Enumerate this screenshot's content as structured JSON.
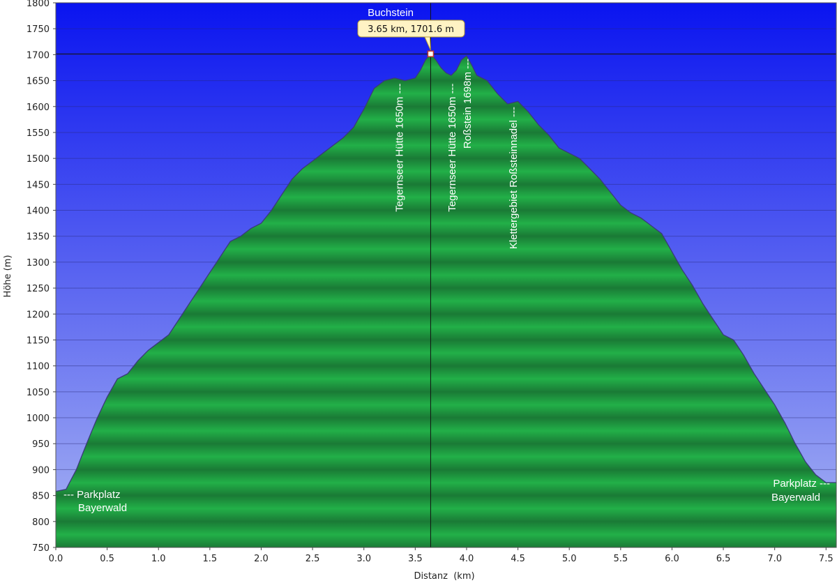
{
  "chart_data": {
    "type": "area",
    "title": "",
    "xlabel": "Distanz  (km)",
    "ylabel": "Höhe (m)",
    "xlim": [
      0,
      7.6
    ],
    "ylim": [
      750,
      1800
    ],
    "x_ticks": [
      "0.0",
      "0.5",
      "1.0",
      "1.5",
      "2.0",
      "2.5",
      "3.0",
      "3.5",
      "4.0",
      "4.5",
      "5.0",
      "5.5",
      "6.0",
      "6.5",
      "7.0",
      "7.5"
    ],
    "y_ticks": [
      "750",
      "800",
      "850",
      "900",
      "950",
      "1000",
      "1050",
      "1100",
      "1150",
      "1200",
      "1250",
      "1300",
      "1350",
      "1400",
      "1450",
      "1500",
      "1550",
      "1600",
      "1650",
      "1700",
      "1750",
      "1800"
    ],
    "grid": true,
    "colors": {
      "sky_top": "#0a14f0",
      "sky_bottom": "#a8b4f2",
      "fill_dark": "#1a7a35",
      "fill_light": "#22b048",
      "outline": "#3a3a7a"
    },
    "series": [
      {
        "x": [
          0,
          0.1,
          0.2,
          0.3,
          0.4,
          0.5,
          0.6,
          0.7,
          0.8,
          0.9,
          1.0,
          1.1,
          1.2,
          1.3,
          1.4,
          1.5,
          1.6,
          1.7,
          1.8,
          1.9,
          2.0,
          2.1,
          2.2,
          2.3,
          2.4,
          2.5,
          2.6,
          2.7,
          2.8,
          2.9,
          3.0,
          3.1,
          3.2,
          3.3,
          3.4,
          3.5,
          3.55,
          3.6,
          3.65,
          3.7,
          3.75,
          3.8,
          3.85,
          3.9,
          3.95,
          4.0,
          4.05,
          4.1,
          4.2,
          4.3,
          4.4,
          4.5,
          4.6,
          4.7,
          4.8,
          4.9,
          5.0,
          5.1,
          5.2,
          5.3,
          5.4,
          5.5,
          5.6,
          5.7,
          5.8,
          5.9,
          6.0,
          6.1,
          6.2,
          6.3,
          6.4,
          6.5,
          6.6,
          6.7,
          6.8,
          6.9,
          7.0,
          7.1,
          7.2,
          7.3,
          7.4,
          7.5,
          7.55,
          7.6
        ],
        "y": [
          858,
          862,
          900,
          950,
          998,
          1040,
          1075,
          1085,
          1110,
          1130,
          1145,
          1160,
          1190,
          1220,
          1250,
          1280,
          1310,
          1340,
          1350,
          1365,
          1375,
          1400,
          1430,
          1460,
          1480,
          1495,
          1510,
          1525,
          1540,
          1560,
          1595,
          1635,
          1650,
          1655,
          1650,
          1655,
          1670,
          1690,
          1701.6,
          1690,
          1675,
          1665,
          1660,
          1670,
          1690,
          1698,
          1680,
          1660,
          1650,
          1625,
          1605,
          1610,
          1590,
          1565,
          1545,
          1520,
          1510,
          1500,
          1480,
          1460,
          1435,
          1410,
          1395,
          1385,
          1370,
          1355,
          1320,
          1285,
          1255,
          1220,
          1190,
          1160,
          1150,
          1120,
          1085,
          1055,
          1025,
          990,
          950,
          915,
          890,
          875,
          875,
          875
        ]
      }
    ],
    "marker": {
      "x": 3.65,
      "y": 1701.6,
      "name": "Buchstein",
      "label": "3.65 km, 1701.6 m"
    },
    "waypoints": [
      {
        "x": 3.38,
        "y": 1650,
        "text": "Tegernseer Hütte 1650m ---"
      },
      {
        "x": 3.89,
        "y": 1650,
        "text": "Tegernseer Hütte 1650m ---"
      },
      {
        "x": 4.04,
        "y": 1698,
        "text": "Roßstein 1698m ---"
      },
      {
        "x": 4.49,
        "y": 1605,
        "text": "Klettergebiet Roßsteinnadel ---"
      }
    ],
    "endpoints": {
      "start": {
        "line1": "--- Parkplatz",
        "line2": "Bayerwald"
      },
      "end": {
        "line1": "Parkplatz ---",
        "line2": "Bayerwald"
      }
    }
  }
}
